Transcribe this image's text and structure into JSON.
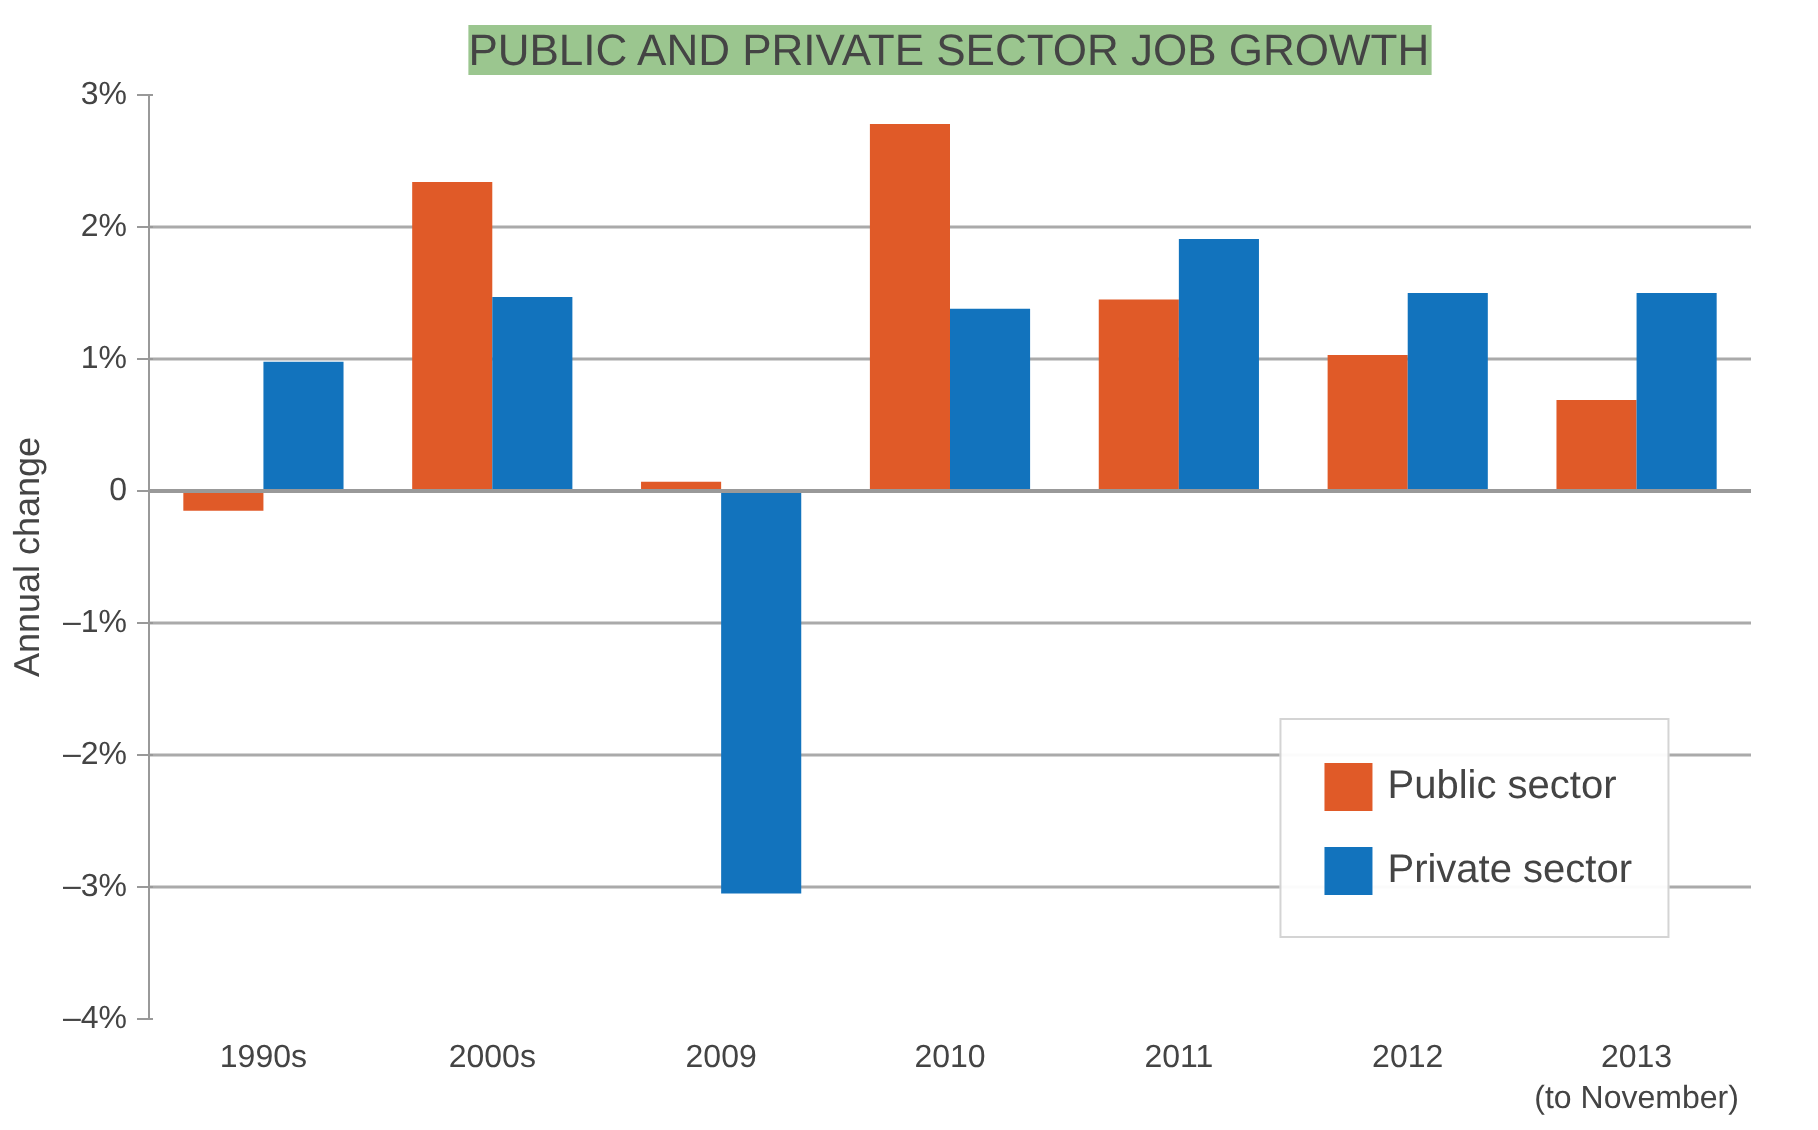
{
  "chart_data": {
    "type": "bar",
    "title": "PUBLIC AND PRIVATE SECTOR JOB GROWTH",
    "ylabel": "Annual change",
    "categories": [
      "1990s",
      "2000s",
      "2009",
      "2010",
      "2011",
      "2012",
      "2013\n(to November)"
    ],
    "series": [
      {
        "name": "Public sector",
        "color": "#e05a28",
        "values": [
          -0.15,
          2.34,
          0.07,
          2.78,
          1.45,
          1.03,
          0.69
        ]
      },
      {
        "name": "Private sector",
        "color": "#1273bd",
        "values": [
          0.98,
          1.47,
          -3.05,
          1.38,
          1.91,
          1.5,
          1.5
        ]
      }
    ],
    "ylim": [
      -4,
      3
    ],
    "yticks": [
      {
        "value": -4,
        "label": "–4%"
      },
      {
        "value": -3,
        "label": "–3%"
      },
      {
        "value": -2,
        "label": "–2%"
      },
      {
        "value": -1,
        "label": "–1%"
      },
      0,
      {
        "value": 1,
        "label": "1%"
      },
      {
        "value": 2,
        "label": "2%"
      },
      {
        "value": 3,
        "label": "3%"
      }
    ],
    "grid": "y",
    "legend": "bottom right"
  }
}
